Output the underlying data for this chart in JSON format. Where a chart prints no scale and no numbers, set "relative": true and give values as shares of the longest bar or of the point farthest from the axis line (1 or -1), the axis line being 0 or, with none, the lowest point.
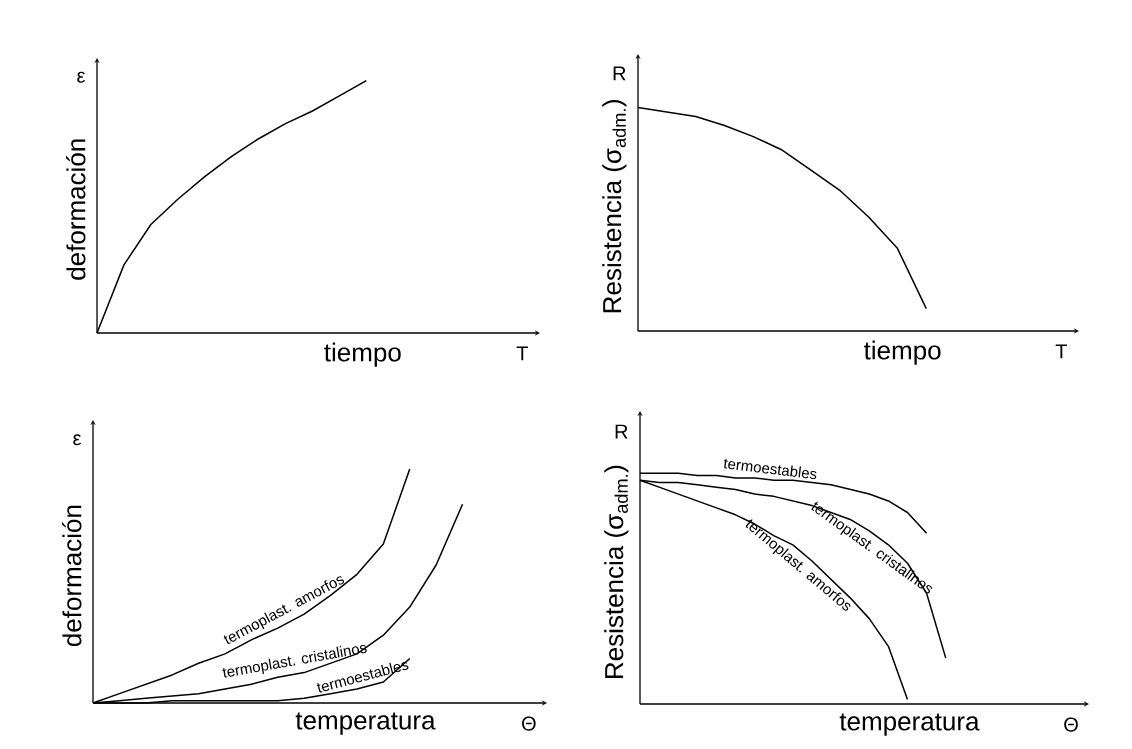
{
  "chart_data": [
    {
      "type": "line",
      "relative": true,
      "xlabel": "tiempo",
      "ylabel": "deformación",
      "annotations": [
        "ε",
        "T"
      ],
      "categories": [
        null,
        null,
        null,
        null,
        null,
        null,
        null,
        null,
        null,
        null,
        null,
        null,
        null,
        null,
        null,
        null,
        null
      ],
      "color": "#000000",
      "values": [
        0,
        0.27,
        0.43,
        0.53,
        0.62,
        0.7,
        0.77,
        0.83,
        0.88,
        0.94,
        1,
        null,
        null,
        null,
        null,
        null,
        null
      ]
    },
    {
      "type": "line",
      "relative": true,
      "xlabel": "tiempo",
      "ylabel": "Resistencia (σ$_{adm.}$)",
      "annotations": [
        "R",
        "T"
      ],
      "categories": [
        null,
        null,
        null,
        null,
        null,
        null,
        null,
        null,
        null,
        null,
        null,
        null,
        null,
        null,
        null,
        null
      ],
      "color": "#000000",
      "values": [
        1,
        0.98,
        0.96,
        0.92,
        0.87,
        0.81,
        0.72,
        0.63,
        0.51,
        0.37,
        0.1,
        null,
        null,
        null,
        null,
        null
      ]
    },
    {
      "type": "line",
      "relative": true,
      "xlabel": "temperatura",
      "ylabel": "deformación",
      "annotations": [
        "ε",
        "Θ"
      ],
      "categories": [
        null,
        null,
        null,
        null,
        null,
        null,
        null,
        null,
        null,
        null,
        null,
        null,
        null,
        null,
        null,
        null,
        null,
        null
      ],
      "series": [
        {
          "name": "termoplast. amorfos",
          "color": "#000000",
          "values": [
            0,
            0.04,
            0.08,
            0.12,
            0.17,
            0.21,
            0.27,
            0.32,
            0.38,
            0.46,
            0.55,
            0.68,
            1,
            null,
            null,
            null,
            null,
            null
          ]
        },
        {
          "name": "termoplast. cristalinos",
          "color": "#000000",
          "values": [
            0,
            0.01,
            0.02,
            0.03,
            0.04,
            0.06,
            0.08,
            0.11,
            0.13,
            0.17,
            0.21,
            0.29,
            0.41,
            0.59,
            0.85,
            null,
            null,
            null
          ]
        },
        {
          "name": "termoestables",
          "color": "#000000",
          "values": [
            0,
            0,
            0,
            0.01,
            0.01,
            0.01,
            0.01,
            0.01,
            0.02,
            0.04,
            0.06,
            0.09,
            0.19,
            null,
            null,
            null,
            null,
            null
          ]
        }
      ]
    },
    {
      "type": "line",
      "relative": true,
      "xlabel": "temperatura",
      "ylabel": "Resistencia (σ$_{adm.}$)",
      "annotations": [
        "R",
        "Θ"
      ],
      "categories": [
        null,
        null,
        null,
        null,
        null,
        null,
        null,
        null,
        null,
        null,
        null,
        null,
        null,
        null,
        null,
        null,
        null,
        null,
        null,
        null,
        null,
        null,
        null,
        null
      ],
      "series": [
        {
          "name": "termoestables",
          "color": "#000000",
          "values": [
            1,
            1,
            1,
            0.99,
            0.99,
            0.98,
            0.98,
            0.97,
            0.97,
            0.96,
            0.95,
            0.93,
            0.91,
            0.88,
            0.83,
            0.74,
            null,
            null,
            null,
            null,
            null,
            null,
            null,
            null
          ]
        },
        {
          "name": "termoplast. cristalinos",
          "color": "#000000",
          "values": [
            0.97,
            0.96,
            0.96,
            0.95,
            0.94,
            0.93,
            0.91,
            0.9,
            0.88,
            0.86,
            0.83,
            0.8,
            0.75,
            0.69,
            0.61,
            0.48,
            0.2,
            null,
            null,
            null,
            null,
            null,
            null,
            null
          ]
        },
        {
          "name": "termoplast. amorfos",
          "color": "#000000",
          "values": [
            0.97,
            0.94,
            0.91,
            0.88,
            0.85,
            0.82,
            0.78,
            0.73,
            0.69,
            0.62,
            0.54,
            0.46,
            0.37,
            0.25,
            0.02,
            null,
            null,
            null,
            null,
            null,
            null,
            null,
            null,
            null
          ]
        }
      ]
    }
  ]
}
